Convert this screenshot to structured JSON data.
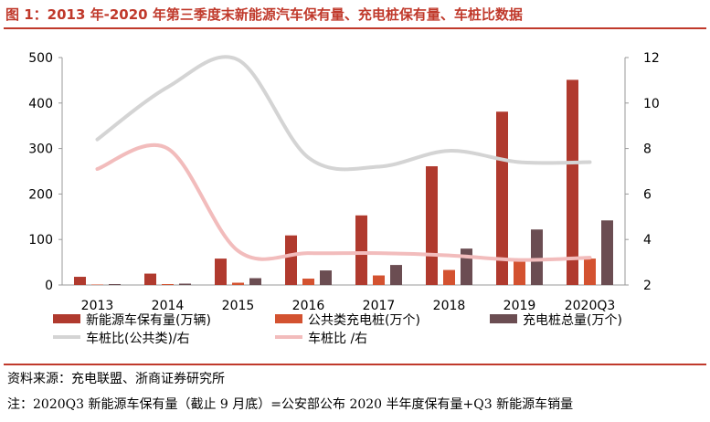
{
  "title": "图 1：2013 年-2020 年第三季度末新能源汽车保有量、充电桩保有量、车桩比数据",
  "source": "资料来源：充电联盟、浙商证券研究所",
  "note": "注：2020Q3 新能源车保有量（截止 9 月底）=公安部公布 2020 半年度保有量+Q3 新能源车销量",
  "colors": {
    "title": "#c0392b",
    "ev": "#b03a2e",
    "public": "#d35230",
    "total": "#6b4d52",
    "ratio_public": "#d4d4d4",
    "ratio_all": "#f2bcbc"
  },
  "chart_data": {
    "type": "bar",
    "categories": [
      "2013",
      "2014",
      "2015",
      "2016",
      "2017",
      "2018",
      "2019",
      "2020Q3"
    ],
    "ylim_left": [
      0,
      500
    ],
    "yticks_left": [
      0,
      100,
      200,
      300,
      400,
      500
    ],
    "ylim_right": [
      2,
      12
    ],
    "yticks_right": [
      2,
      4,
      6,
      8,
      10,
      12
    ],
    "grid": false,
    "legend_position": "bottom",
    "series": [
      {
        "name": "新能源车保有量(万辆)",
        "type": "bar",
        "axis": "left",
        "values": [
          18,
          25,
          58,
          109,
          153,
          261,
          381,
          451
        ]
      },
      {
        "name": "公共类充电桩(万个)",
        "type": "bar",
        "axis": "left",
        "values": [
          1,
          2,
          5,
          14,
          21,
          33,
          52,
          58
        ]
      },
      {
        "name": "充电桩总量(万个)",
        "type": "bar",
        "axis": "left",
        "values": [
          2,
          3,
          15,
          32,
          44,
          80,
          122,
          142
        ]
      },
      {
        "name": "车桩比(公共类)/右",
        "type": "line",
        "axis": "right",
        "values": [
          8.4,
          10.7,
          11.9,
          7.6,
          7.2,
          7.9,
          7.4,
          7.4
        ]
      },
      {
        "name": "车桩比 /右",
        "type": "line",
        "axis": "right",
        "values": [
          7.1,
          8.0,
          3.5,
          3.4,
          3.4,
          3.3,
          3.1,
          3.2
        ]
      }
    ]
  }
}
